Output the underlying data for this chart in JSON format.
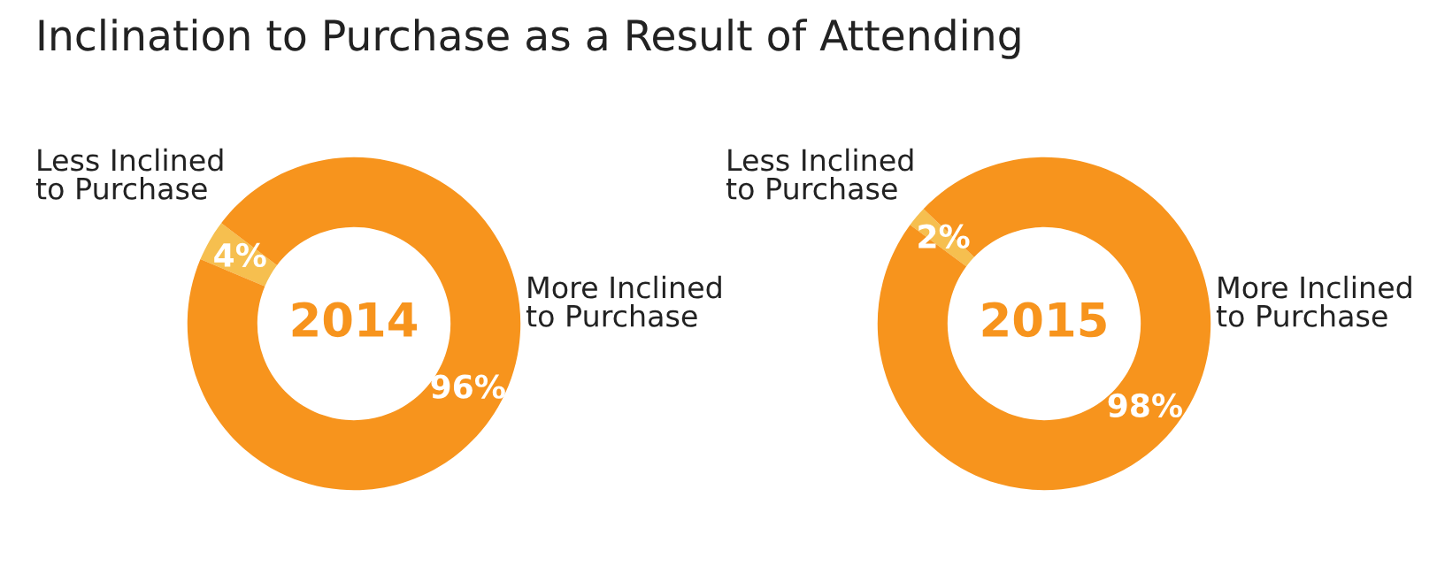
{
  "chart_data": [
    {
      "type": "donut",
      "title": "Inclination to Purchase as a Result of Attending",
      "annotations": [
        "2014"
      ],
      "categories": [
        "Less Inclined to Purchase",
        "More Inclined to Purchase"
      ],
      "values": [
        4,
        96
      ],
      "colors": [
        "#f6bf4f",
        "#f7941d"
      ],
      "value_labels": [
        "4%",
        "96%"
      ]
    },
    {
      "type": "donut",
      "annotations": [
        "2015"
      ],
      "categories": [
        "Less Inclined to Purchase",
        "More Inclined to Purchase"
      ],
      "values": [
        2,
        98
      ],
      "colors": [
        "#f6bf4f",
        "#f7941d"
      ],
      "value_labels": [
        "2%",
        "98%"
      ]
    }
  ]
}
